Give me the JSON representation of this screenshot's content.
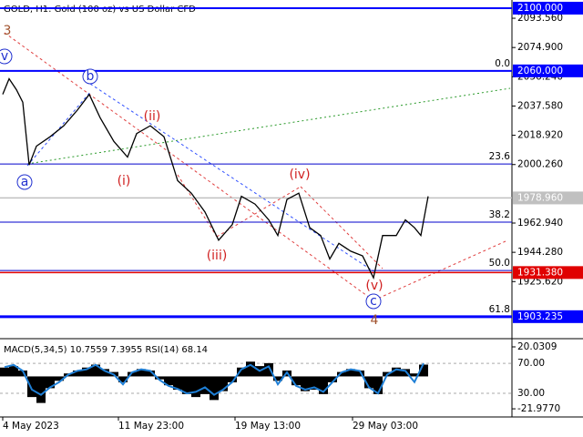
{
  "chart_data": [
    {
      "type": "line",
      "title": "GOLD, H1:  Gold (100 oz) vs US Dollar CFD",
      "x": [
        3,
        10,
        18,
        25,
        32,
        40,
        55,
        70,
        85,
        98,
        110,
        125,
        140,
        150,
        165,
        180,
        195,
        210,
        225,
        240,
        255,
        265,
        280,
        295,
        305,
        315,
        328,
        340,
        352,
        362,
        372,
        385,
        398,
        410,
        420,
        435,
        445,
        455,
        462,
        470
      ],
      "series": [
        {
          "color": "#000000",
          "values": [
            2045,
            2055,
            2048,
            2040,
            2000,
            2012,
            2018,
            2025,
            2035,
            2045,
            2030,
            2015,
            2005,
            2020,
            2025,
            2018,
            1990,
            1982,
            1970,
            1952,
            1962,
            1980,
            1975,
            1965,
            1955,
            1978,
            1982,
            1960,
            1955,
            1940,
            1950,
            1945,
            1942,
            1928,
            1955,
            1955,
            1965,
            1960,
            1955,
            1980
          ]
        }
      ],
      "xlim": [
        0,
        562
      ],
      "ylim": [
        1889.2,
        2105.2
      ],
      "xticks": [
        {
          "value": 3,
          "label": "4 May 2023"
        },
        {
          "value": 130,
          "label": "11 May 23:00"
        },
        {
          "value": 258,
          "label": "19 May 13:00"
        },
        {
          "value": 387,
          "label": "29 May 03:00"
        }
      ],
      "yticks": [
        {
          "value": 2093.56,
          "label": "2093.560"
        },
        {
          "value": 2074.9,
          "label": "2074.900"
        },
        {
          "value": 2056.24,
          "label": "2056.240"
        },
        {
          "value": 2037.58,
          "label": "2037.580"
        },
        {
          "value": 2018.92,
          "label": "2018.920"
        },
        {
          "value": 2000.26,
          "label": "2000.260"
        },
        {
          "value": 1962.94,
          "label": "1962.940"
        },
        {
          "value": 1944.28,
          "label": "1944.280"
        },
        {
          "value": 1925.62,
          "label": "1925.620"
        }
      ],
      "levels": [
        {
          "value": 2100,
          "label": "2100.000",
          "color": "#0000ff"
        },
        {
          "value": 2060,
          "label": "2060.000",
          "color": "#0000ff"
        },
        {
          "value": 1978.96,
          "label": "1978.960",
          "color": "#c0c0c0"
        },
        {
          "value": 1931.38,
          "label": "1931.380",
          "color": "#e00000"
        },
        {
          "value": 1903.235,
          "label": "1903.235",
          "color": "#0000ff"
        }
      ],
      "fib_levels": [
        {
          "value": 2060,
          "label": "0.0"
        },
        {
          "value": 2000.6,
          "label": "23.6"
        },
        {
          "value": 1963.5,
          "label": "38.2"
        },
        {
          "value": 1932.7,
          "label": "50.0"
        },
        {
          "value": 1903.2,
          "label": "61.8"
        }
      ],
      "annotations": [
        "3",
        "v",
        "b",
        "a",
        "(ii)",
        "(i)",
        "(iii)",
        "(iv)",
        "(v)",
        "c",
        "4"
      ]
    },
    {
      "type": "bar",
      "title": "MACD(5,34,5) 10.7559 7.3955 RSI(14) 68.14",
      "x": [
        5,
        15,
        25,
        35,
        45,
        55,
        65,
        75,
        85,
        95,
        105,
        115,
        125,
        135,
        145,
        155,
        165,
        175,
        185,
        195,
        205,
        215,
        225,
        235,
        245,
        255,
        265,
        275,
        285,
        295,
        305,
        315,
        325,
        335,
        345,
        355,
        365,
        375,
        385,
        395,
        405,
        415,
        425,
        435,
        445,
        455,
        465
      ],
      "series": [
        {
          "color": "#000000",
          "values": [
            6,
            7,
            4,
            -14,
            -18,
            -8,
            -3,
            2,
            4,
            6,
            8,
            5,
            3,
            -4,
            3,
            5,
            4,
            -2,
            -6,
            -9,
            -12,
            -14,
            -12,
            -16,
            -10,
            -4,
            6,
            10,
            7,
            9,
            -3,
            4,
            -6,
            -10,
            -9,
            -12,
            -4,
            3,
            5,
            4,
            -8,
            -12,
            3,
            6,
            5,
            2,
            8
          ]
        },
        {
          "color": "#1e7fd6",
          "axis": "y2",
          "values": [
            65,
            68,
            60,
            35,
            28,
            38,
            45,
            55,
            60,
            62,
            68,
            60,
            55,
            42,
            58,
            62,
            60,
            48,
            40,
            36,
            30,
            32,
            38,
            28,
            35,
            45,
            62,
            68,
            60,
            66,
            42,
            58,
            40,
            35,
            38,
            32,
            45,
            58,
            62,
            60,
            38,
            30,
            55,
            62,
            60,
            45,
            70
          ]
        }
      ],
      "xlim": [
        0,
        562
      ],
      "ylim": [
        -27.5,
        24.35
      ],
      "yticks": [
        {
          "value": 20.0309,
          "label": "20.0309"
        },
        {
          "value": -21.977,
          "label": "-21.9770"
        }
      ],
      "y2lim": [
        -1.5,
        100.5
      ],
      "y2ticks": [
        {
          "value": 70,
          "label": "70.00"
        },
        {
          "value": 30,
          "label": "30.00"
        }
      ]
    }
  ]
}
